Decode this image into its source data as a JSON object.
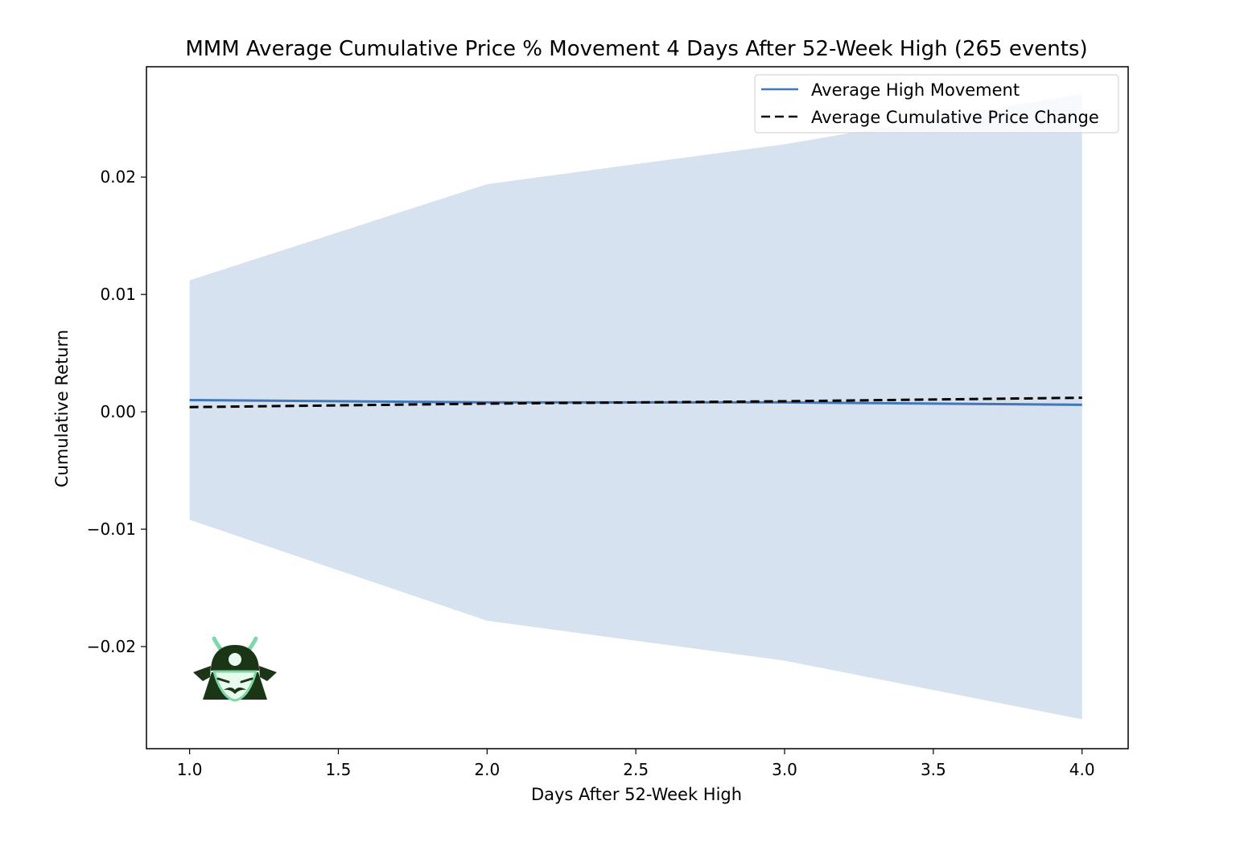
{
  "chart_data": {
    "type": "line",
    "title": "MMM Average Cumulative Price % Movement 4 Days After 52-Week High (265 events)",
    "xlabel": "Days After 52-Week High",
    "ylabel": "Cumulative Return",
    "x": [
      1.0,
      2.0,
      3.0,
      4.0
    ],
    "xlim": [
      0.855,
      4.155
    ],
    "ylim": [
      -0.0287,
      0.0294
    ],
    "xticks": [
      1.0,
      1.5,
      2.0,
      2.5,
      3.0,
      3.5,
      4.0
    ],
    "xtick_labels": [
      "1.0",
      "1.5",
      "2.0",
      "2.5",
      "3.0",
      "3.5",
      "4.0"
    ],
    "yticks": [
      -0.02,
      -0.01,
      0.0,
      0.01,
      0.02
    ],
    "ytick_labels": [
      "−0.02",
      "−0.01",
      "0.00",
      "0.01",
      "0.02"
    ],
    "grid": false,
    "legend_position": "top-right",
    "series": [
      {
        "name": "Average High Movement",
        "values": [
          0.001,
          0.0008,
          0.0008,
          0.0006
        ],
        "color": "#4477b8",
        "style": "solid"
      },
      {
        "name": "Average Cumulative Price Change",
        "values": [
          0.0004,
          0.0007,
          0.0009,
          0.0012
        ],
        "color": "#000000",
        "style": "dashed"
      }
    ],
    "band": {
      "upper": [
        0.0112,
        0.0194,
        0.0228,
        0.0271
      ],
      "lower": [
        -0.0092,
        -0.0178,
        -0.0212,
        -0.0262
      ],
      "color": "#d6e2ef"
    }
  },
  "logo": {
    "icon": "samurai-helmet-icon",
    "colors": {
      "helmet": "#1b3517",
      "accent": "#7ed8a5",
      "face": "#e8faee"
    }
  }
}
